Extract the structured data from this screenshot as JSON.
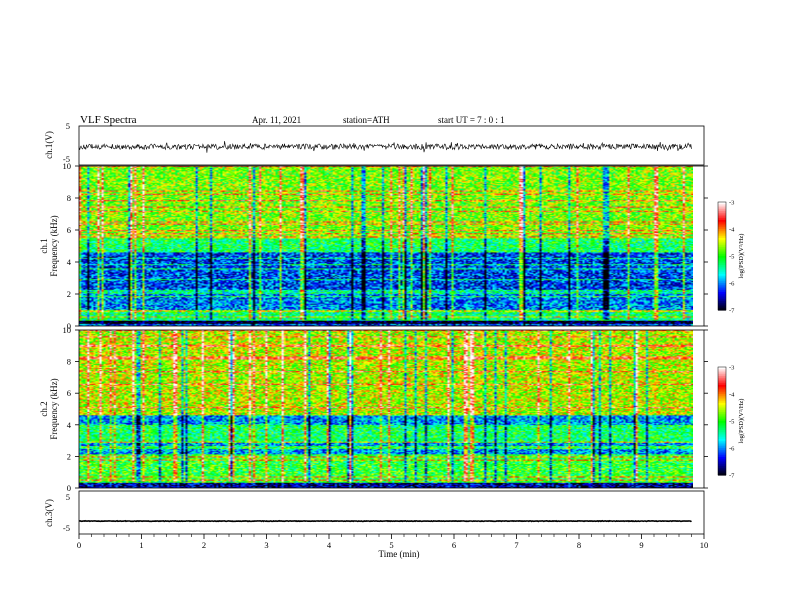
{
  "header": {
    "title": "VLF Spectra",
    "date": "Apr. 11, 2021",
    "station": "station=ATH",
    "start": "start UT = 7 : 0 : 1"
  },
  "chart_data": [
    {
      "type": "line",
      "ylabel": "ch.1(V)",
      "ylim": [
        -5,
        5
      ],
      "yticks": [
        "5",
        "-5"
      ],
      "description_visible": "noisy waveform centred near -0.3 V, range about -1.2 to 0.8 V",
      "xlim": [
        0,
        10
      ],
      "x_extent_min": 9.8,
      "center_value": -0.3,
      "amplitude": 0.7
    },
    {
      "type": "heatmap",
      "ylabel": "ch.1\nFrequency (kHz)",
      "ylabel_lines": [
        "ch.1",
        "Frequency (kHz)"
      ],
      "ylim": [
        0,
        10
      ],
      "yticks": [
        "0",
        "2",
        "4",
        "6",
        "8",
        "10"
      ],
      "xlim": [
        0,
        10
      ],
      "x_extent_min": 9.8,
      "colorbar": {
        "label": "log(PSD)(V²/Hz)",
        "range": [
          -7,
          -3
        ],
        "ticks": [
          "-3",
          "-4",
          "-5",
          "-6",
          "-7"
        ]
      },
      "bands": [
        {
          "from_khz": 0.0,
          "to_khz": 0.35,
          "level": -7.0
        },
        {
          "from_khz": 0.35,
          "to_khz": 1.0,
          "level": -5.3
        },
        {
          "from_khz": 1.0,
          "to_khz": 2.0,
          "level": -6.0
        },
        {
          "from_khz": 2.0,
          "to_khz": 2.3,
          "level": -5.4
        },
        {
          "from_khz": 2.3,
          "to_khz": 4.6,
          "level": -6.2
        },
        {
          "from_khz": 4.6,
          "to_khz": 5.5,
          "level": -5.2
        },
        {
          "from_khz": 5.5,
          "to_khz": 10.0,
          "level": -4.7
        }
      ]
    },
    {
      "type": "heatmap",
      "ylabel": "ch.2\nFrequency (kHz)",
      "ylabel_lines": [
        "ch.2",
        "Frequency (kHz)"
      ],
      "ylim": [
        0,
        10
      ],
      "yticks": [
        "0",
        "2",
        "4",
        "6",
        "8",
        "10"
      ],
      "xlim": [
        0,
        10
      ],
      "x_extent_min": 9.8,
      "colorbar": {
        "label": "log(PSD)(V²/Hz)",
        "range": [
          -7,
          -3
        ],
        "ticks": [
          "-3",
          "-4",
          "-5",
          "-6",
          "-7"
        ]
      },
      "bands": [
        {
          "from_khz": 0.0,
          "to_khz": 0.35,
          "level": -6.6
        },
        {
          "from_khz": 0.35,
          "to_khz": 2.1,
          "level": -5.0
        },
        {
          "from_khz": 2.1,
          "to_khz": 2.9,
          "level": -5.9
        },
        {
          "from_khz": 2.9,
          "to_khz": 4.0,
          "level": -5.2
        },
        {
          "from_khz": 4.0,
          "to_khz": 4.6,
          "level": -5.9
        },
        {
          "from_khz": 4.6,
          "to_khz": 10.0,
          "level": -4.5
        }
      ]
    },
    {
      "type": "line",
      "ylabel": "ch.3(V)",
      "ylim": [
        -5,
        5
      ],
      "yticks": [
        "5",
        "-5"
      ],
      "xlim": [
        0,
        10
      ],
      "x_extent_min": 9.8,
      "center_value": -2.0,
      "amplitude": 0.15
    }
  ],
  "x_axis": {
    "label": "Time (min)",
    "ticks": [
      "0",
      "1",
      "2",
      "3",
      "4",
      "5",
      "6",
      "7",
      "8",
      "9",
      "10"
    ]
  },
  "colors": {
    "colormap": [
      "#000000",
      "#0000ff",
      "#00ffff",
      "#00ff00",
      "#ffff00",
      "#ff0000",
      "#ffffff"
    ]
  }
}
